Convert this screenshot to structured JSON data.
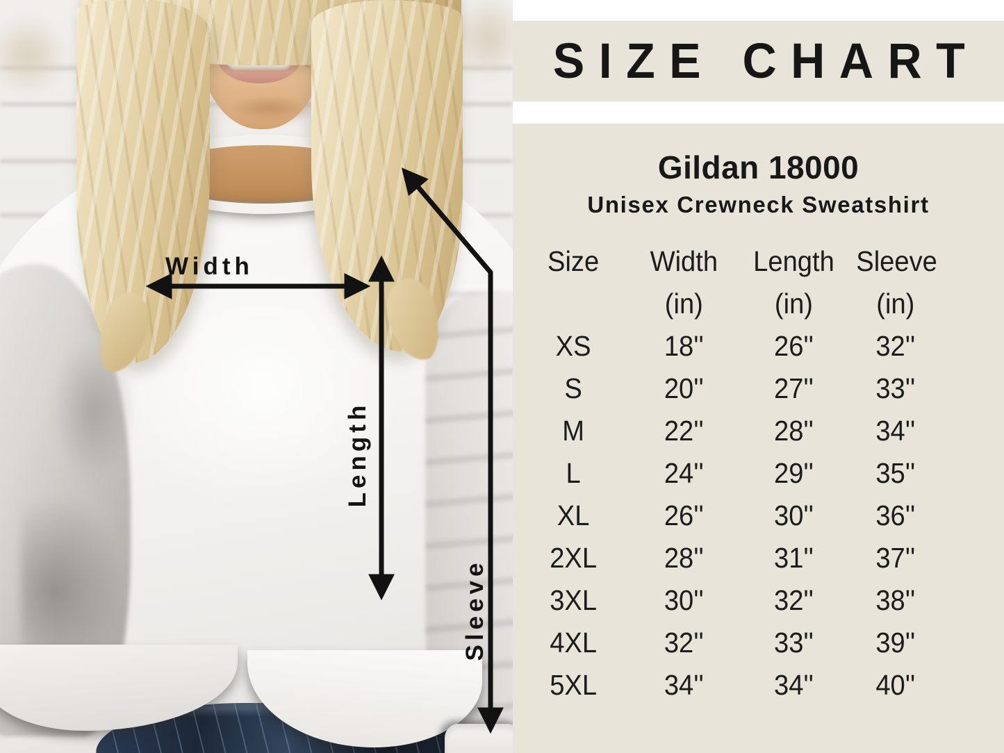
{
  "panel": {
    "title": "SIZE CHART",
    "product": "Gildan 18000",
    "subtitle": "Unisex Crewneck Sweatshirt"
  },
  "measurement_labels": {
    "width": "Width",
    "length": "Length",
    "sleeve": "Sleeve"
  },
  "chart_data": {
    "type": "table",
    "title": "SIZE CHART",
    "product": "Gildan 18000",
    "product_subtitle": "Unisex Crewneck Sweatshirt",
    "columns": [
      "Size",
      "Width (in)",
      "Length (in)",
      "Sleeve (in)"
    ],
    "header_row": [
      "Size",
      "Width",
      "Length",
      "Sleeve"
    ],
    "unit_row": [
      "(in)",
      "(in)",
      "(in)"
    ],
    "rows": [
      [
        "XS",
        "18''",
        "26''",
        "32''"
      ],
      [
        "S",
        "20''",
        "27''",
        "33''"
      ],
      [
        "M",
        "22''",
        "28''",
        "34''"
      ],
      [
        "L",
        "24''",
        "29''",
        "35''"
      ],
      [
        "XL",
        "26''",
        "30''",
        "36''"
      ],
      [
        "2XL",
        "28''",
        "31''",
        "37''"
      ],
      [
        "3XL",
        "30''",
        "32''",
        "38''"
      ],
      [
        "4XL",
        "32''",
        "33''",
        "39''"
      ],
      [
        "5XL",
        "34''",
        "34''",
        "40''"
      ]
    ]
  },
  "colors": {
    "panel_bg": "#e9e4da",
    "gap_bg": "#ffffff",
    "text": "#1c1c1c",
    "arrow": "#121212",
    "sweatshirt": "#f5f4f2",
    "jeans": "#1c2838",
    "hair": "#e7d6ae",
    "skin": "#eac79d"
  }
}
